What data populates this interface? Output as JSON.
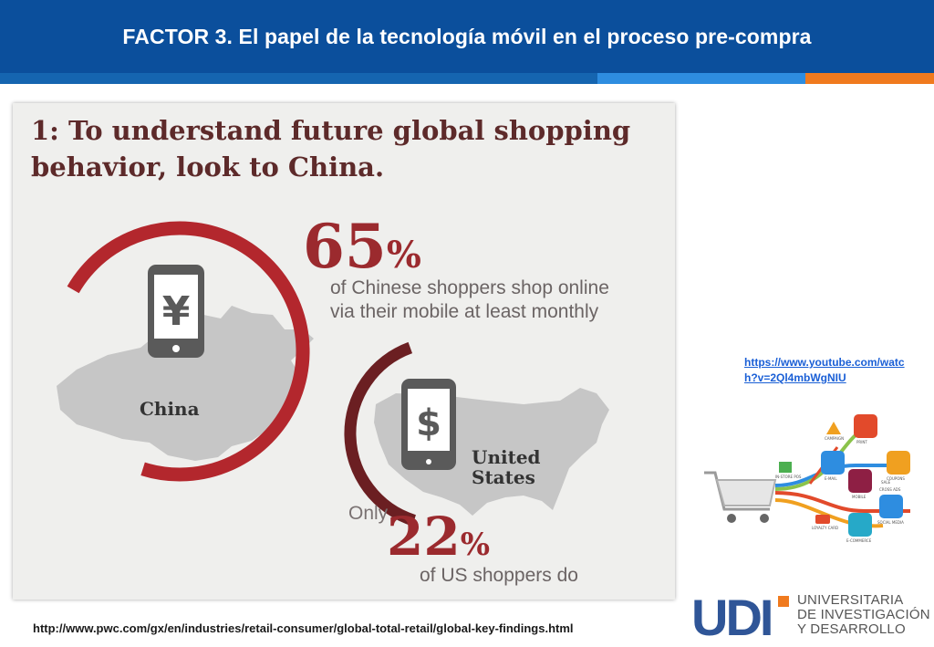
{
  "header": {
    "title": "FACTOR  3. El papel de la tecnología móvil en el proceso pre-compra",
    "colors": {
      "bar": "#0b4f9c",
      "stripe_mid": "#2e8de0",
      "stripe_accent": "#f07a1e"
    }
  },
  "infographic": {
    "heading": "1: To understand future global shopping behavior, look to China.",
    "china": {
      "percent": "65",
      "percent_sign": "%",
      "line1": "of Chinese shoppers shop online",
      "line2": "via their mobile at least monthly",
      "label": "China",
      "icon": "yen-phone-icon",
      "ring_fraction": 0.65
    },
    "us": {
      "prefix": "Only",
      "percent": "22",
      "percent_sign": "%",
      "line1": "of US shoppers do",
      "label_line1": "United",
      "label_line2": "States",
      "icon": "dollar-phone-icon",
      "ring_fraction": 0.22
    },
    "colors": {
      "china_ring": "#b3272d",
      "us_ring": "#6b1f22",
      "map": "#c6c6c6",
      "phone": "#5a5a5a"
    }
  },
  "side": {
    "link": "https://www.youtube.com/watch?v=2Ql4mbWgNIU",
    "diagram": {
      "labels": [
        "PRINT",
        "CAMPAIGN",
        "COUPONS",
        "E-MAIL",
        "IN-STORE POS",
        "MOBILE",
        "SALE",
        "CROSS ADS",
        "SOCIAL MEDIA",
        "LOYALTY CARD",
        "E-COMMERCE"
      ],
      "icon": "shopping-cart-icon"
    }
  },
  "footer": {
    "url": "http://www.pwc.com/gx/en/industries/retail-consumer/global-total-retail/global-key-findings.html"
  },
  "logo": {
    "mark": "UDI",
    "line1": "UNIVERSITARIA",
    "line2": "DE INVESTIGACIÓN",
    "line3": "Y DESARROLLO",
    "color_blue": "#2f5597",
    "color_orange": "#f07a1e"
  }
}
